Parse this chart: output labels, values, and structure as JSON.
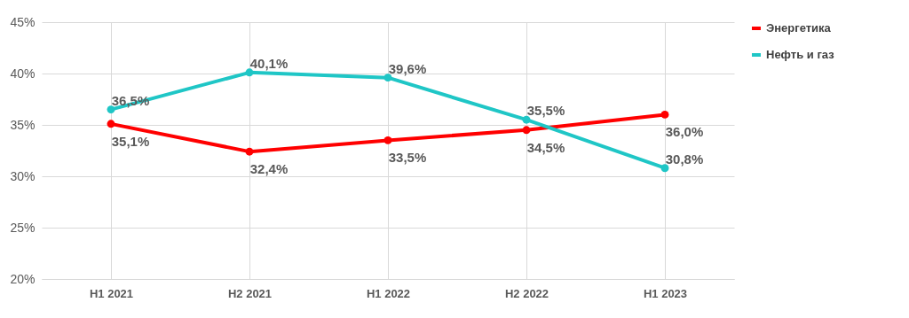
{
  "chart_data": {
    "type": "line",
    "categories": [
      "H1 2021",
      "H2 2021",
      "H1 2022",
      "H2 2022",
      "H1 2023"
    ],
    "series": [
      {
        "name": "Энергетика",
        "color": "#ff0000",
        "values": [
          35.1,
          32.4,
          33.5,
          34.5,
          36.0
        ],
        "value_labels": [
          "35,1%",
          "32,4%",
          "33,5%",
          "34,5%",
          "36,0%"
        ]
      },
      {
        "name": "Нефть и газ",
        "color": "#1fc6c6",
        "values": [
          36.5,
          40.1,
          39.6,
          35.5,
          30.8
        ],
        "value_labels": [
          "36,5%",
          "40,1%",
          "39,6%",
          "35,5%",
          "30,8%"
        ]
      }
    ],
    "ylim": [
      20,
      45
    ],
    "yticks": [
      {
        "value": 20,
        "label": "20%"
      },
      {
        "value": 25,
        "label": "25%"
      },
      {
        "value": 30,
        "label": "30%"
      },
      {
        "value": 35,
        "label": "35%"
      },
      {
        "value": 40,
        "label": "40%"
      },
      {
        "value": 45,
        "label": "45%"
      }
    ],
    "grid": true,
    "legend": "right",
    "marker": "circle",
    "line_style": "solid"
  }
}
